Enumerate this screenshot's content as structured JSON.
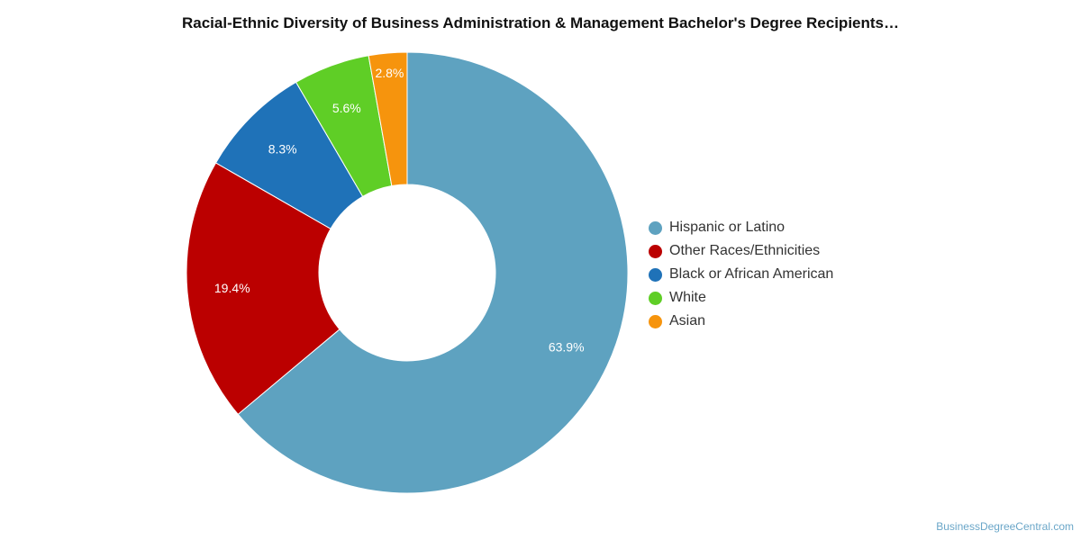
{
  "chart_data": {
    "type": "pie",
    "title": "Racial-Ethnic Diversity of Business Administration & Management Bachelor's Degree Recipients…",
    "categories": [
      "Hispanic or Latino",
      "Other Races/Ethnicities",
      "Black or African American",
      "White",
      "Asian"
    ],
    "values": [
      63.9,
      19.4,
      8.3,
      5.6,
      2.8
    ],
    "value_labels": [
      "63.9%",
      "19.4%",
      "8.3%",
      "5.6%",
      "2.8%"
    ],
    "colors": [
      "#5ea2c0",
      "#bb0000",
      "#1f72b8",
      "#5fce26",
      "#f6940d"
    ],
    "unit": "%",
    "donut": true,
    "legend_position": "right"
  },
  "credit": "BusinessDegreeCentral.com"
}
